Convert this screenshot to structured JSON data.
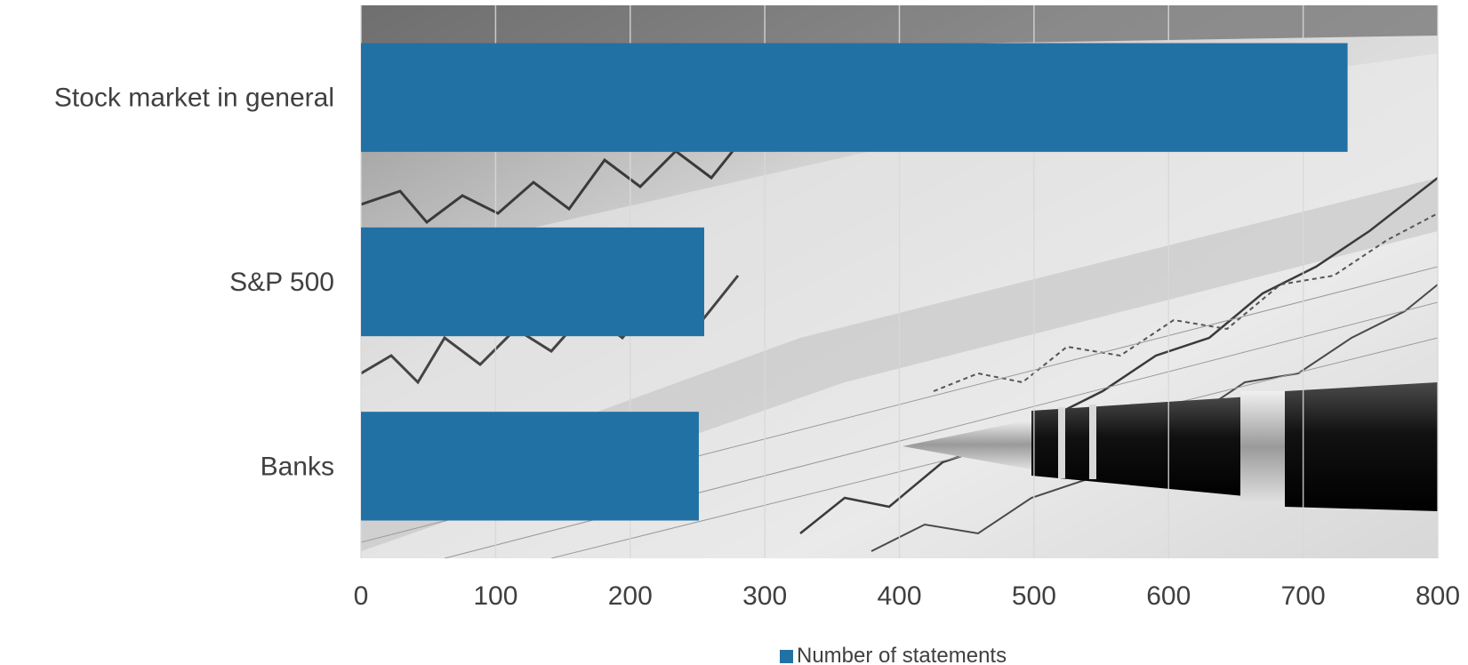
{
  "chart_data": {
    "type": "bar",
    "orientation": "horizontal",
    "categories": [
      "Stock market in general",
      "S&P 500",
      "Banks"
    ],
    "series": [
      {
        "name": "Number of statements",
        "values": [
          733,
          255,
          251
        ]
      }
    ],
    "xlim": [
      0,
      800
    ],
    "x_ticks": [
      0,
      100,
      200,
      300,
      400,
      500,
      600,
      700,
      800
    ],
    "grid": true,
    "legend_position": "bottom",
    "plot_background": "grayscale photo of financial charts with a pen",
    "colors": {
      "bar": "#2271a4",
      "text": "#404040",
      "grid": "#d9d9d9"
    }
  }
}
